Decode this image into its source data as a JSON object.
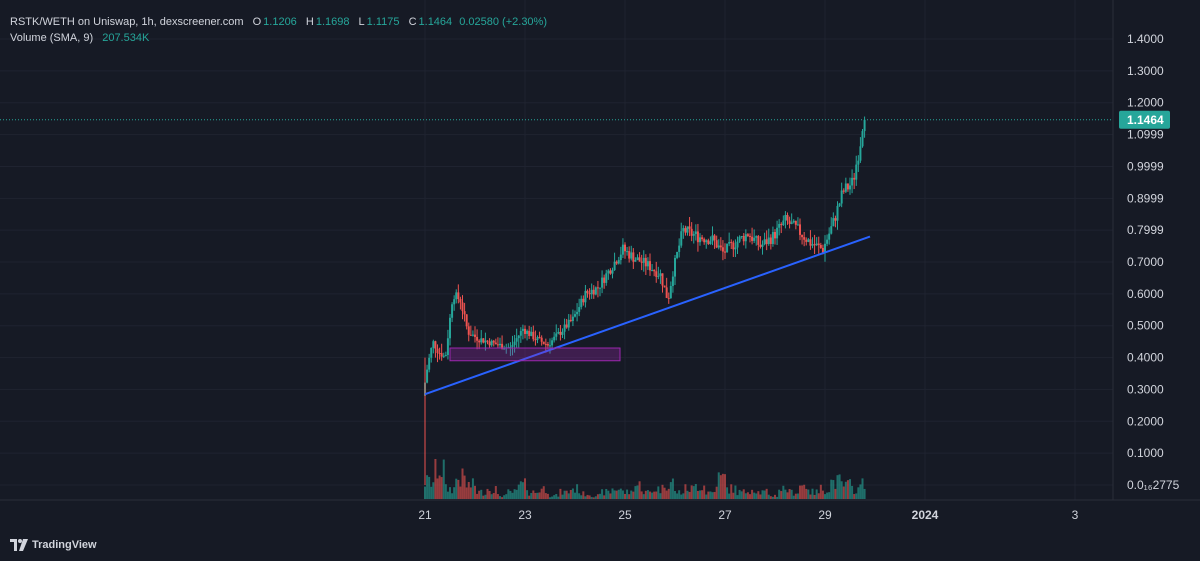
{
  "header": {
    "pair": "RSTK/WETH on Uniswap, 1h, dexscreener.com",
    "o_label": "O",
    "o_value": "1.1206",
    "h_label": "H",
    "h_value": "1.1698",
    "l_label": "L",
    "l_value": "1.1175",
    "c_label": "C",
    "c_value": "1.1464",
    "change": "0.02580 (+2.30%)",
    "volume_label": "Volume (SMA, 9)",
    "volume_value": "207.534K"
  },
  "brand": {
    "name": "TradingView",
    "icon": "tradingview-logo-icon"
  },
  "colors": {
    "up": "#26a69a",
    "down": "#ef5350",
    "trendline": "#2962ff",
    "zone": "#9c27b0",
    "last_price_bg": "#26a69a",
    "background": "#161a25"
  },
  "last_price_label": "1.1464",
  "chart_data": {
    "type": "candlestick",
    "interval": "1h",
    "y_tick_labels": [
      "1.4000",
      "1.3000",
      "1.2000",
      "1.0999",
      "0.9999",
      "0.8999",
      "0.7999",
      "0.7000",
      "0.6000",
      "0.5000",
      "0.4000",
      "0.3000",
      "0.2000",
      "0.1000",
      "0.0₁₆2775"
    ],
    "y_ticks": [
      1.4,
      1.3,
      1.2,
      1.0999,
      0.9999,
      0.8999,
      0.7999,
      0.7,
      0.6,
      0.5,
      0.4,
      0.3,
      0.2,
      0.1,
      0.0
    ],
    "ylim": [
      0.0,
      1.4
    ],
    "x_tick_labels": [
      "21",
      "23",
      "25",
      "27",
      "29",
      "2024",
      "3"
    ],
    "x_ticks_day": [
      21,
      23,
      25,
      27,
      29,
      31,
      34
    ],
    "xlim_day": [
      12.5,
      36.0
    ],
    "last_price": 1.1464,
    "price_path": [
      [
        21.0,
        0.28
      ],
      [
        21.1,
        0.38
      ],
      [
        21.2,
        0.45
      ],
      [
        21.3,
        0.42
      ],
      [
        21.45,
        0.4
      ],
      [
        21.6,
        0.6
      ],
      [
        21.75,
        0.58
      ],
      [
        21.9,
        0.48
      ],
      [
        22.1,
        0.46
      ],
      [
        22.3,
        0.45
      ],
      [
        22.5,
        0.44
      ],
      [
        22.75,
        0.43
      ],
      [
        23.0,
        0.49
      ],
      [
        23.25,
        0.46
      ],
      [
        23.5,
        0.44
      ],
      [
        23.75,
        0.48
      ],
      [
        24.0,
        0.52
      ],
      [
        24.25,
        0.6
      ],
      [
        24.5,
        0.62
      ],
      [
        24.75,
        0.68
      ],
      [
        25.0,
        0.74
      ],
      [
        25.25,
        0.71
      ],
      [
        25.5,
        0.69
      ],
      [
        25.75,
        0.66
      ],
      [
        25.9,
        0.58
      ],
      [
        26.0,
        0.67
      ],
      [
        26.2,
        0.8
      ],
      [
        26.5,
        0.78
      ],
      [
        26.8,
        0.77
      ],
      [
        27.0,
        0.73
      ],
      [
        27.25,
        0.76
      ],
      [
        27.5,
        0.79
      ],
      [
        27.75,
        0.75
      ],
      [
        28.0,
        0.78
      ],
      [
        28.25,
        0.83
      ],
      [
        28.5,
        0.8
      ],
      [
        28.75,
        0.76
      ],
      [
        29.0,
        0.74
      ],
      [
        29.2,
        0.82
      ],
      [
        29.4,
        0.92
      ],
      [
        29.6,
        0.95
      ],
      [
        29.75,
        1.08
      ],
      [
        29.8,
        1.1464
      ]
    ],
    "volume_relative": [
      0.5,
      0.9,
      0.3,
      0.6,
      0.4,
      0.2,
      0.3,
      0.1,
      0.2,
      0.4,
      0.2,
      0.3,
      0.1,
      0.2,
      0.3,
      0.15,
      0.1,
      0.2,
      0.3,
      0.2,
      0.4,
      0.2,
      0.3,
      0.5,
      0.2,
      0.3,
      0.4,
      0.2,
      0.6,
      0.3,
      0.2,
      0.3,
      0.2,
      0.1,
      0.3,
      0.2,
      0.4,
      0.2,
      0.3,
      0.5,
      0.4,
      0.3,
      0.6
    ],
    "annotations": [
      {
        "type": "trendline",
        "from": [
          21.0,
          0.285
        ],
        "to": [
          29.9,
          0.78
        ]
      },
      {
        "type": "rectangle",
        "x_day": [
          21.5,
          24.9
        ],
        "y": [
          0.39,
          0.43
        ]
      }
    ]
  }
}
